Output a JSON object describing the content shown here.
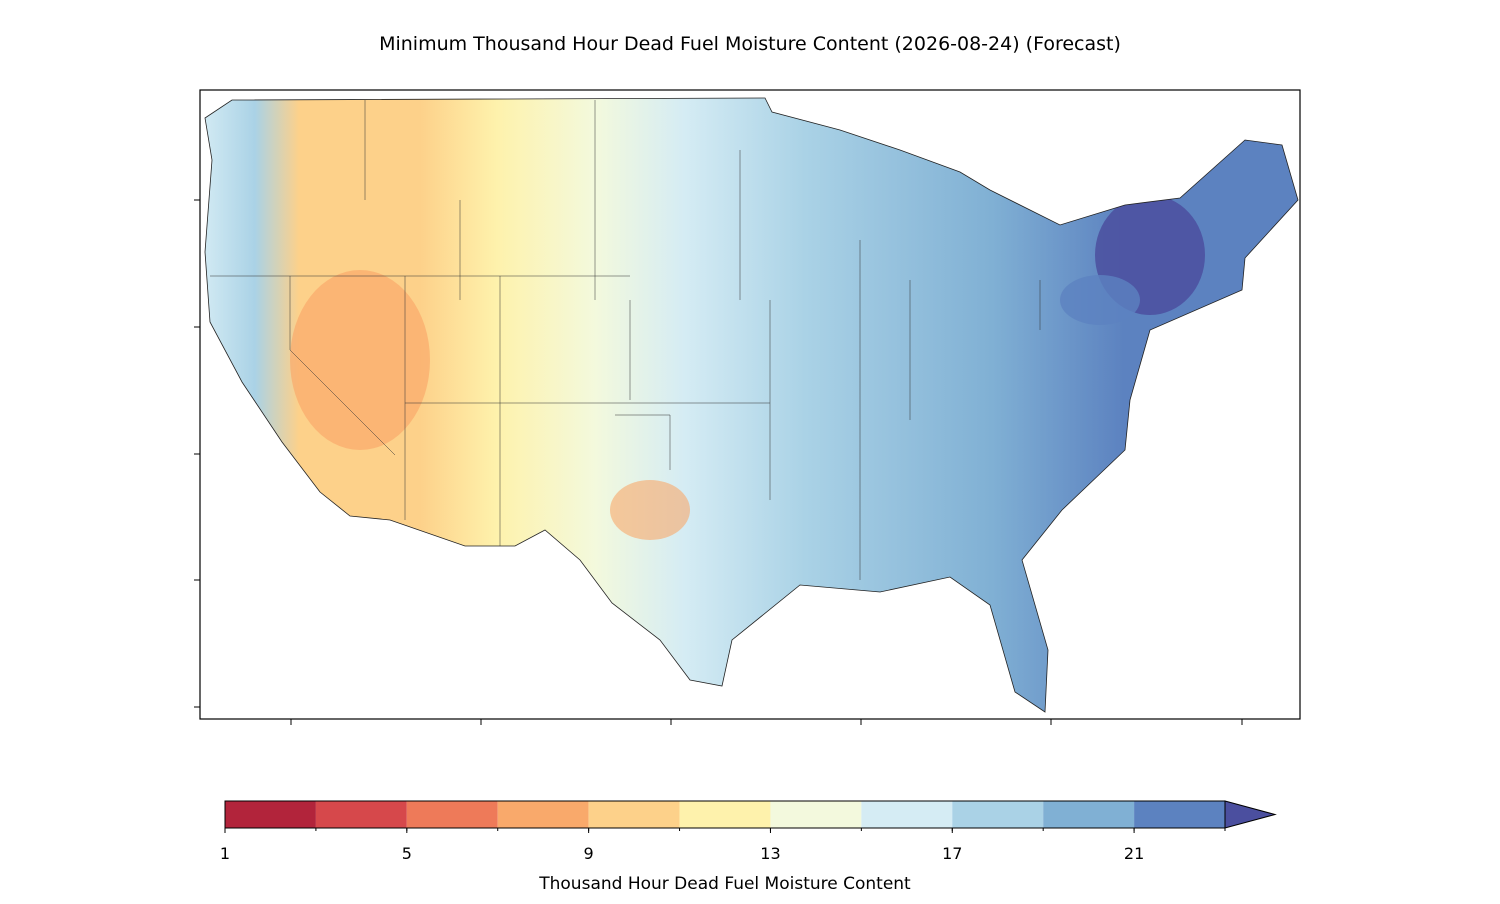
{
  "chart_data": {
    "type": "colormap",
    "title": "Minimum Thousand Hour Dead Fuel Moisture Content (2026-08-24) (Forecast)",
    "colorbar": {
      "label": "Thousand Hour Dead Fuel Moisture Content",
      "levels": [
        1,
        3,
        5,
        7,
        9,
        11,
        13,
        15,
        17,
        19,
        21,
        23
      ],
      "colors": [
        "#b2243b",
        "#d6484b",
        "#ee7a59",
        "#f9a96b",
        "#fdd18a",
        "#fef2ac",
        "#f3f9dd",
        "#d5ecf4",
        "#aad2e6",
        "#80b0d4",
        "#5c82c0"
      ],
      "extend_color": "#4b4f9f",
      "ticks": [
        1,
        5,
        9,
        13,
        17,
        21
      ]
    }
  }
}
